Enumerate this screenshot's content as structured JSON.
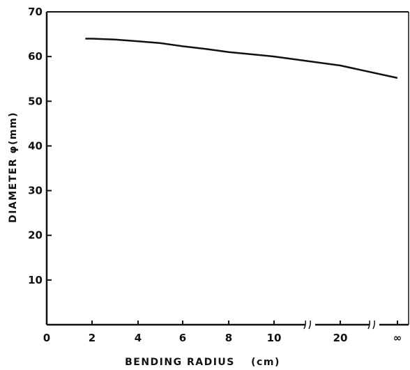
{
  "chart_data": {
    "type": "line",
    "title": "",
    "xlabel": "BENDING RADIUS",
    "xlabel_unit": "(cm)",
    "ylabel": "DIAMETER φ(mm)",
    "ylim": [
      0,
      70
    ],
    "y_ticks": [
      "10",
      "20",
      "30",
      "40",
      "50",
      "60",
      "70"
    ],
    "x_ticks": [
      "0",
      "2",
      "4",
      "6",
      "8",
      "10",
      "20",
      "∞"
    ],
    "x_axis_breaks": [
      "between 10 and 20",
      "between 20 and ∞"
    ],
    "grid": false,
    "legend": "none",
    "series": [
      {
        "x": [
          "1.7",
          "2",
          "3",
          "4",
          "5",
          "6",
          "7",
          "8",
          "9",
          "10",
          "20",
          "∞"
        ],
        "values": [
          64,
          64,
          63.8,
          63.4,
          63,
          62.3,
          61.7,
          61,
          60.5,
          60,
          58,
          55.2
        ]
      }
    ]
  }
}
